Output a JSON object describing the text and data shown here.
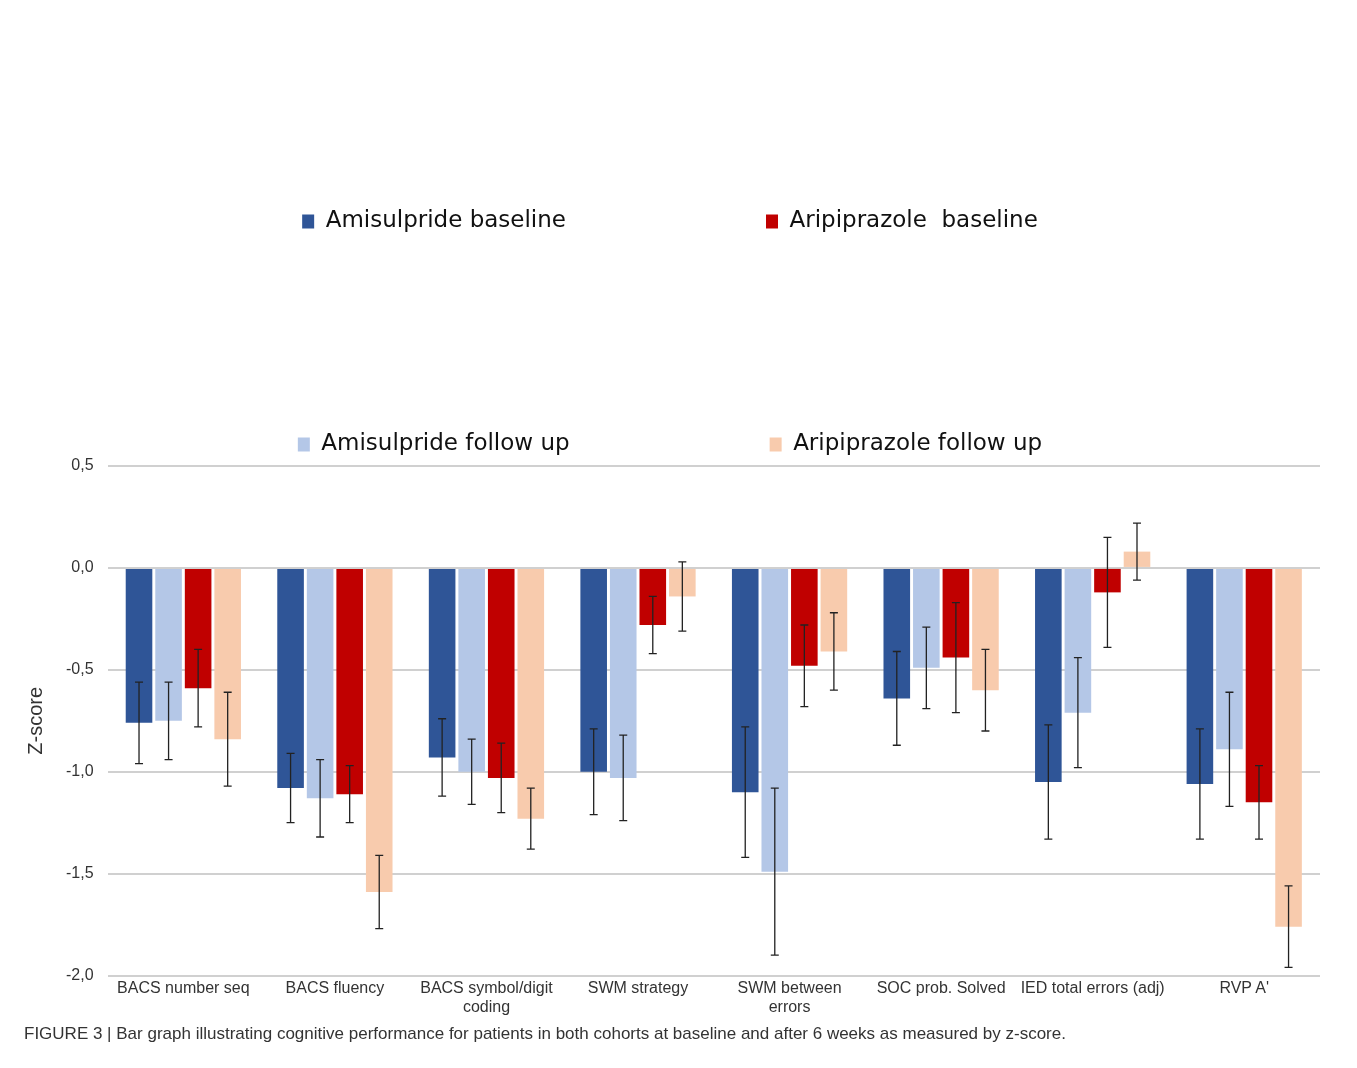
{
  "chart_data": {
    "type": "bar",
    "ylabel": "Z-score",
    "categories": [
      "BACS number seq",
      "BACS fluency",
      "BACS symbol/digit coding",
      "SWM strategy",
      "SWM between errors",
      "SOC prob. Solved",
      "IED total errors (adj)",
      "RVP A'"
    ],
    "series": [
      {
        "name": "Amisulpride baseline",
        "color": "#2f5597",
        "values": [
          -0.76,
          -1.08,
          -0.93,
          -1.0,
          -1.1,
          -0.64,
          -1.05,
          -1.06
        ],
        "errors": [
          0.2,
          0.17,
          0.19,
          0.21,
          0.32,
          0.23,
          0.28,
          0.27
        ]
      },
      {
        "name": "Amisulpride follow up",
        "color": "#b4c7e7",
        "values": [
          -0.75,
          -1.13,
          -1.0,
          -1.03,
          -1.49,
          -0.49,
          -0.71,
          -0.89
        ],
        "errors": [
          0.19,
          0.19,
          0.16,
          0.21,
          0.41,
          0.2,
          0.27,
          0.28
        ]
      },
      {
        "name": "Aripiprazole  baseline",
        "color": "#c00000",
        "values": [
          -0.59,
          -1.11,
          -1.03,
          -0.28,
          -0.48,
          -0.44,
          -0.12,
          -1.15
        ],
        "errors": [
          0.19,
          0.14,
          0.17,
          0.14,
          0.2,
          0.27,
          0.27,
          0.18
        ]
      },
      {
        "name": "Aripiprazole follow up",
        "color": "#f8cbad",
        "values": [
          -0.84,
          -1.59,
          -1.23,
          -0.14,
          -0.41,
          -0.6,
          0.08,
          -1.76
        ],
        "errors": [
          0.23,
          0.18,
          0.15,
          0.17,
          0.19,
          0.2,
          0.14,
          0.2
        ]
      }
    ],
    "ylim": [
      -2,
      0.5
    ],
    "yticks": [
      {
        "value": -2,
        "label": "-2,0"
      },
      {
        "value": -1.5,
        "label": "-1,5"
      },
      {
        "value": -1,
        "label": "-1,0"
      },
      {
        "value": -0.5,
        "label": "-0,5"
      },
      {
        "value": 0,
        "label": "0,0"
      },
      {
        "value": 0.5,
        "label": "0,5"
      }
    ],
    "grid": "y",
    "legend": "top",
    "annotations": [
      "FIGURE 3 | Bar graph illustrating cognitive performance for patients in both cohorts at baseline and after 6 weeks as measured by z-score."
    ]
  }
}
